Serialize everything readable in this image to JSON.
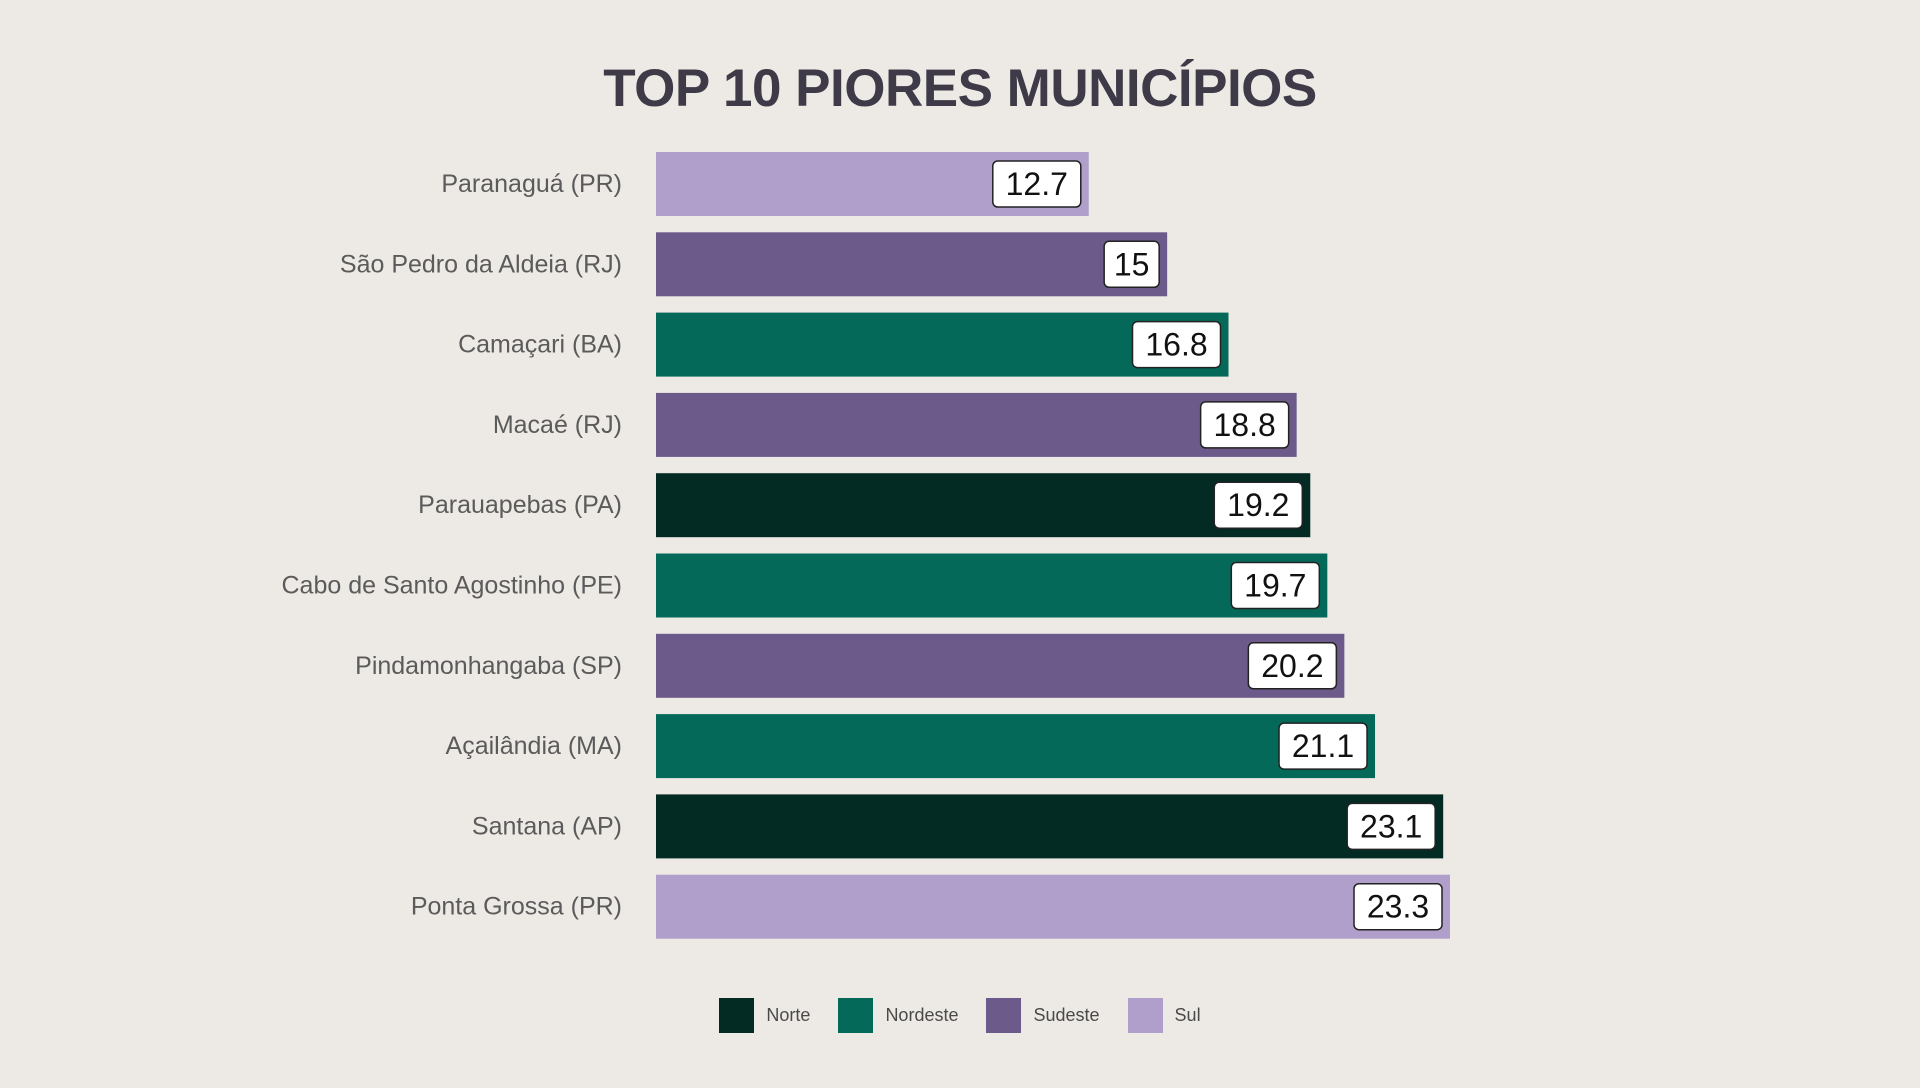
{
  "chart_data": {
    "type": "bar",
    "orientation": "horizontal",
    "title": "TOP 10 PIORES MUNICÍPIOS",
    "categories": [
      "Paranaguá (PR)",
      "São Pedro da Aldeia (RJ)",
      "Camaçari (BA)",
      "Macaé (RJ)",
      "Parauapebas (PA)",
      "Cabo de Santo Agostinho (PE)",
      "Pindamonhangaba (SP)",
      "Açailândia (MA)",
      "Santana (AP)",
      "Ponta Grossa (PR)"
    ],
    "values": [
      12.7,
      15,
      16.8,
      18.8,
      19.2,
      19.7,
      20.2,
      21.1,
      23.1,
      23.3
    ],
    "value_labels": [
      "12.7",
      "15",
      "16.8",
      "18.8",
      "19.2",
      "19.7",
      "20.2",
      "21.1",
      "23.1",
      "23.3"
    ],
    "regions": [
      "Sul",
      "Sudeste",
      "Nordeste",
      "Sudeste",
      "Norte",
      "Nordeste",
      "Sudeste",
      "Nordeste",
      "Norte",
      "Sul"
    ],
    "xlim": [
      0,
      23.3
    ],
    "grid": false,
    "legend_position": "bottom",
    "legend": [
      {
        "name": "Norte",
        "color": "#032b24"
      },
      {
        "name": "Nordeste",
        "color": "#05695a"
      },
      {
        "name": "Sudeste",
        "color": "#6c5a8a"
      },
      {
        "name": "Sul",
        "color": "#b09fca"
      }
    ]
  },
  "colors": {
    "background": "#edeae5",
    "title": "#3f3a48",
    "category_label": "#5b5b5b",
    "value_label_bg": "#ffffff",
    "value_label_text": "#111111"
  }
}
